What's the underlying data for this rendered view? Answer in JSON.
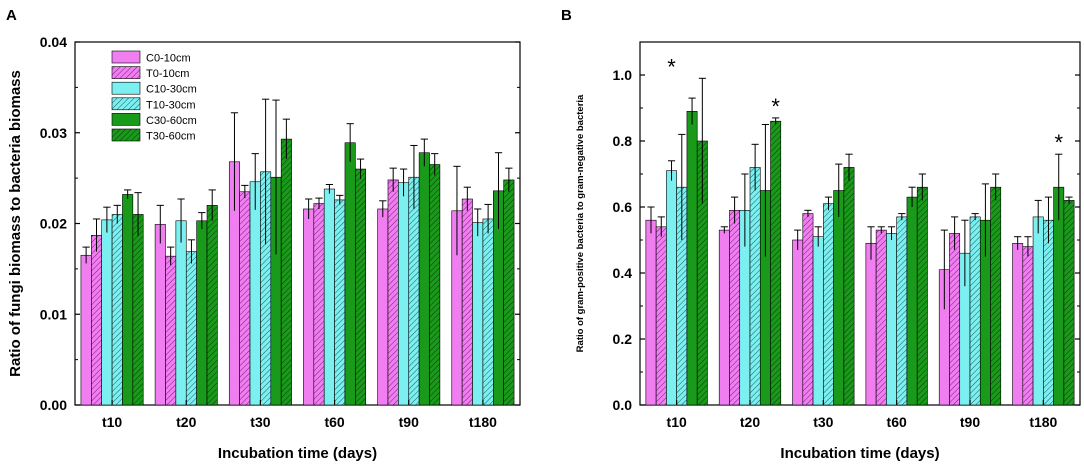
{
  "colors": {
    "C0-10cm": "#f07ef0",
    "T0-10cm": "#f07ef0",
    "C10-30cm": "#7cf0f0",
    "T10-30cm": "#7cf0f0",
    "C30-60cm": "#1a9a1a",
    "T30-60cm": "#1a9a1a"
  },
  "chart_data": [
    {
      "type": "bar",
      "panel": "A",
      "xlabel": "Incubation time (days)",
      "ylabel": "Ratio of fungi biomass to bacteria biomass",
      "ylim": [
        0,
        0.04
      ],
      "yticks": [
        "0.00",
        "0.01",
        "0.02",
        "0.03",
        "0.04"
      ],
      "legend_position": "top-left",
      "categories": [
        "t10",
        "t20",
        "t30",
        "t60",
        "t90",
        "t180"
      ],
      "series": [
        {
          "name": "C0-10cm",
          "hatched": false,
          "values": [
            0.0165,
            0.0199,
            0.0268,
            0.0216,
            0.0216,
            0.0214
          ],
          "errors": [
            0.0009,
            0.0021,
            0.0054,
            0.0011,
            0.0009,
            0.0049
          ]
        },
        {
          "name": "T0-10cm",
          "hatched": true,
          "values": [
            0.0187,
            0.0164,
            0.0235,
            0.0222,
            0.0248,
            0.0227
          ],
          "errors": [
            0.0018,
            0.001,
            0.0007,
            0.0006,
            0.0013,
            0.0013
          ]
        },
        {
          "name": "C10-30cm",
          "hatched": false,
          "values": [
            0.0204,
            0.0203,
            0.0246,
            0.0238,
            0.0245,
            0.0201
          ],
          "errors": [
            0.0014,
            0.0024,
            0.0031,
            0.0005,
            0.0015,
            0.0015
          ]
        },
        {
          "name": "T10-30cm",
          "hatched": true,
          "values": [
            0.021,
            0.0169,
            0.0257,
            0.0226,
            0.0251,
            0.0205
          ],
          "errors": [
            0.001,
            0.0013,
            0.008,
            0.0005,
            0.0035,
            0.0016
          ]
        },
        {
          "name": "C30-60cm",
          "hatched": false,
          "values": [
            0.0232,
            0.0203,
            0.0251,
            0.0289,
            0.0278,
            0.0236
          ],
          "errors": [
            0.0005,
            0.0009,
            0.0085,
            0.0021,
            0.0015,
            0.0042
          ]
        },
        {
          "name": "T30-60cm",
          "hatched": true,
          "values": [
            0.021,
            0.022,
            0.0293,
            0.026,
            0.0265,
            0.0248
          ],
          "errors": [
            0.0024,
            0.0017,
            0.0022,
            0.0011,
            0.0012,
            0.0013
          ]
        }
      ],
      "significance": []
    },
    {
      "type": "bar",
      "panel": "B",
      "xlabel": "Incubation time (days)",
      "ylabel": "Ratio of gram-positive bacteria to gram-negative bacteria",
      "ylim": [
        0,
        1.1
      ],
      "yticks": [
        "0.0",
        "0.2",
        "0.4",
        "0.6",
        "0.8",
        "1.0"
      ],
      "categories": [
        "t10",
        "t20",
        "t30",
        "t60",
        "t90",
        "t180"
      ],
      "series": [
        {
          "name": "C0-10cm",
          "hatched": false,
          "values": [
            0.56,
            0.53,
            0.5,
            0.49,
            0.41,
            0.49
          ],
          "errors": [
            0.04,
            0.01,
            0.03,
            0.05,
            0.12,
            0.02
          ]
        },
        {
          "name": "T0-10cm",
          "hatched": true,
          "values": [
            0.54,
            0.59,
            0.58,
            0.53,
            0.52,
            0.48
          ],
          "errors": [
            0.03,
            0.04,
            0.01,
            0.01,
            0.05,
            0.03
          ]
        },
        {
          "name": "C10-30cm",
          "hatched": false,
          "values": [
            0.71,
            0.59,
            0.51,
            0.52,
            0.46,
            0.57
          ],
          "errors": [
            0.03,
            0.11,
            0.03,
            0.02,
            0.1,
            0.05
          ]
        },
        {
          "name": "T10-30cm",
          "hatched": true,
          "values": [
            0.66,
            0.72,
            0.61,
            0.57,
            0.57,
            0.56
          ],
          "errors": [
            0.16,
            0.07,
            0.02,
            0.01,
            0.01,
            0.07
          ]
        },
        {
          "name": "C30-60cm",
          "hatched": false,
          "values": [
            0.89,
            0.65,
            0.65,
            0.63,
            0.56,
            0.66
          ],
          "errors": [
            0.04,
            0.2,
            0.08,
            0.03,
            0.11,
            0.1
          ]
        },
        {
          "name": "T30-60cm",
          "hatched": true,
          "values": [
            0.8,
            0.86,
            0.72,
            0.66,
            0.66,
            0.62
          ],
          "errors": [
            0.19,
            0.01,
            0.04,
            0.04,
            0.04,
            0.01
          ]
        }
      ],
      "significance": [
        {
          "category": "t10",
          "label": "*"
        },
        {
          "category": "t20",
          "label": "*"
        },
        {
          "category": "t180",
          "label": "*"
        }
      ]
    }
  ]
}
